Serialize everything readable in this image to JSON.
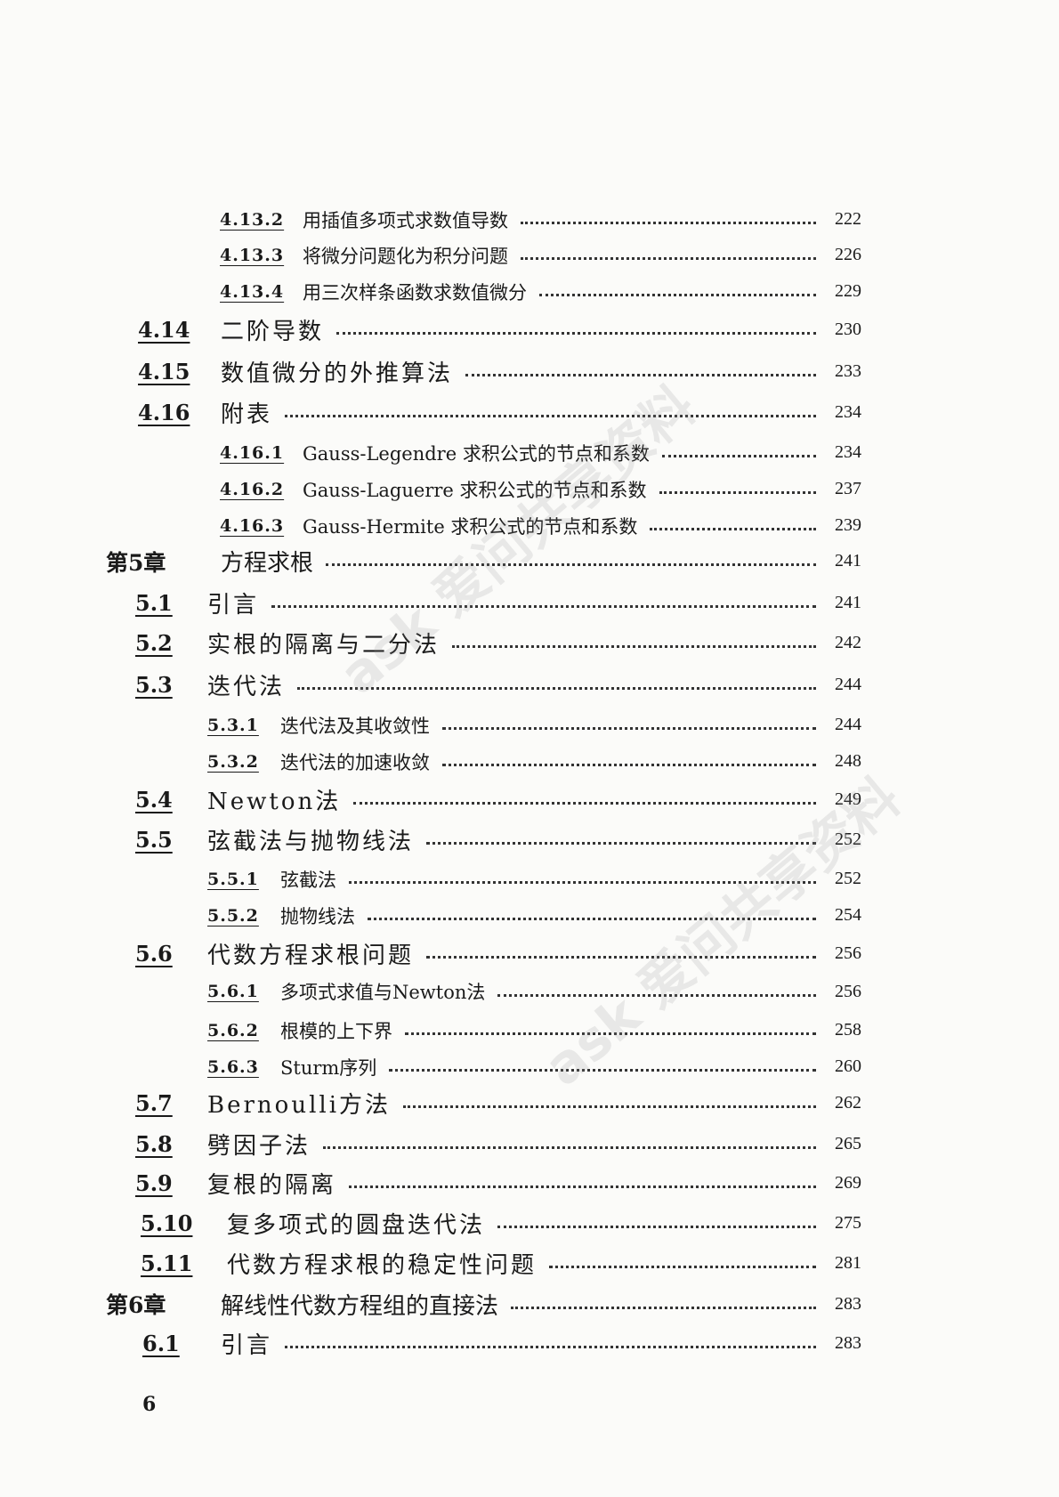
{
  "toc": [
    {
      "level": "sub",
      "num": "4.13.2",
      "title": "用插值多项式求数值导数",
      "page": "222"
    },
    {
      "level": "sub",
      "num": "4.13.3",
      "title": "将微分问题化为积分问题",
      "page": "226"
    },
    {
      "level": "sub",
      "num": "4.13.4",
      "title": "用三次样条函数求数值微分",
      "page": "229"
    },
    {
      "level": "sec",
      "num": "4.14",
      "title": "二阶导数",
      "page": "230"
    },
    {
      "level": "sec",
      "num": "4.15",
      "title": "数值微分的外推算法",
      "page": "233"
    },
    {
      "level": "sec",
      "num": "4.16",
      "title": "附表",
      "page": "234"
    },
    {
      "level": "sub",
      "num": "4.16.1",
      "title": "Gauss-Legendre 求积公式的节点和系数",
      "page": "234"
    },
    {
      "level": "sub",
      "num": "4.16.2",
      "title": "Gauss-Laguerre 求积公式的节点和系数",
      "page": "237"
    },
    {
      "level": "sub",
      "num": "4.16.3",
      "title": "Gauss-Hermite 求积公式的节点和系数",
      "page": "239"
    },
    {
      "level": "ch",
      "num": "第5章",
      "title": "方程求根",
      "page": "241"
    },
    {
      "level": "sec",
      "num": "5.1",
      "title": "引言",
      "page": "241"
    },
    {
      "level": "sec",
      "num": "5.2",
      "title": "实根的隔离与二分法",
      "page": "242"
    },
    {
      "level": "sec",
      "num": "5.3",
      "title": "迭代法",
      "page": "244"
    },
    {
      "level": "sub",
      "num": "5.3.1",
      "title": "迭代法及其收敛性",
      "page": "244"
    },
    {
      "level": "sub",
      "num": "5.3.2",
      "title": "迭代法的加速收敛",
      "page": "248"
    },
    {
      "level": "sec",
      "num": "5.4",
      "title": "Newton法",
      "page": "249"
    },
    {
      "level": "sec",
      "num": "5.5",
      "title": "弦截法与抛物线法",
      "page": "252"
    },
    {
      "level": "sub",
      "num": "5.5.1",
      "title": "弦截法",
      "page": "252"
    },
    {
      "level": "sub",
      "num": "5.5.2",
      "title": "抛物线法",
      "page": "254"
    },
    {
      "level": "sec",
      "num": "5.6",
      "title": "代数方程求根问题",
      "page": "256"
    },
    {
      "level": "sub",
      "num": "5.6.1",
      "title": "多项式求值与Newton法",
      "page": "256"
    },
    {
      "level": "sub",
      "num": "5.6.2",
      "title": "根模的上下界",
      "page": "258"
    },
    {
      "level": "sub",
      "num": "5.6.3",
      "title": "Sturm序列",
      "page": "260"
    },
    {
      "level": "sec",
      "num": "5.7",
      "title": "Bernoulli方法",
      "page": "262"
    },
    {
      "level": "sec",
      "num": "5.8",
      "title": "劈因子法",
      "page": "265"
    },
    {
      "level": "sec",
      "num": "5.9",
      "title": "复根的隔离",
      "page": "269"
    },
    {
      "level": "sec",
      "num": "5.10",
      "title": "复多项式的圆盘迭代法",
      "page": "275"
    },
    {
      "level": "sec",
      "num": "5.11",
      "title": "代数方程求根的稳定性问题",
      "page": "281"
    },
    {
      "level": "ch",
      "num": "第6章",
      "title": "解线性代数方程组的直接法",
      "page": "283"
    },
    {
      "level": "sec",
      "num": "6.1",
      "title": "引言",
      "page": "283"
    }
  ],
  "page_number": "6",
  "watermark": "ask 爱问共享资料"
}
